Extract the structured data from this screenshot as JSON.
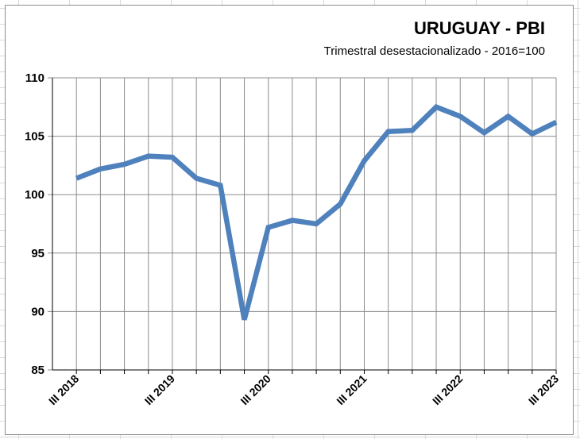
{
  "chart_data": {
    "type": "line",
    "title": "URUGUAY - PBI",
    "subtitle": "Trimestral desestacionalizado - 2016=100",
    "xlabel": "",
    "ylabel": "",
    "ylim": [
      85,
      110
    ],
    "yticks": [
      "85",
      "90",
      "95",
      "100",
      "105",
      "110"
    ],
    "grid": true,
    "legend": "none",
    "line_color": "#4f81bd",
    "categories": [
      "III 2018",
      "IV 2018",
      "I 2019",
      "II 2019",
      "III 2019",
      "IV 2019",
      "I 2020",
      "II 2020",
      "III 2020",
      "IV 2020",
      "I 2021",
      "II 2021",
      "III 2021",
      "IV 2021",
      "I 2022",
      "II 2022",
      "III 2022",
      "IV 2022",
      "I 2023",
      "II 2023",
      "III 2023"
    ],
    "x_tick_labels": [
      "III 2018",
      "III 2019",
      "III 2020",
      "III 2021",
      "III 2022",
      "III 2023"
    ],
    "x_tick_label_indices": [
      0,
      4,
      8,
      12,
      16,
      20
    ],
    "series": [
      {
        "values": [
          101.4,
          102.2,
          102.6,
          103.3,
          103.2,
          101.4,
          100.8,
          89.3,
          97.2,
          97.8,
          97.5,
          99.2,
          102.9,
          105.4,
          105.5,
          107.5,
          106.7,
          105.3,
          106.7,
          105.2,
          106.2
        ]
      }
    ]
  }
}
